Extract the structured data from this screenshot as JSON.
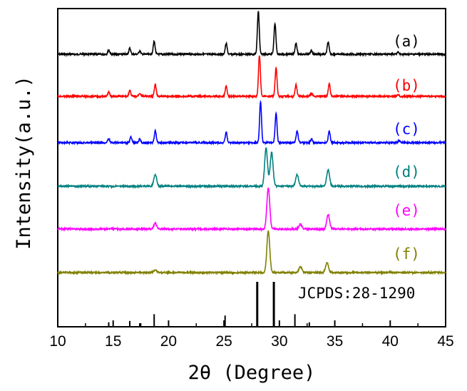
{
  "chart_data": {
    "type": "line",
    "xlabel": "2θ (Degree)",
    "ylabel": "Intensity(a.u.)",
    "xlim": [
      10,
      45
    ],
    "xticks": [
      10,
      15,
      20,
      25,
      30,
      35,
      40,
      45
    ],
    "grid": false,
    "series": [
      {
        "name": "(a)",
        "color": "#000000",
        "shape": "sharp",
        "peaks": [
          [
            14.6,
            0.1
          ],
          [
            16.5,
            0.14
          ],
          [
            17.4,
            0.08
          ],
          [
            18.7,
            0.3
          ],
          [
            25.2,
            0.25
          ],
          [
            28.1,
            1.0
          ],
          [
            29.6,
            0.72
          ],
          [
            31.5,
            0.26
          ],
          [
            32.9,
            0.08
          ],
          [
            34.4,
            0.28
          ],
          [
            40.7,
            0.05
          ]
        ]
      },
      {
        "name": "(b)",
        "color": "#ff0000",
        "shape": "sharp",
        "peaks": [
          [
            14.6,
            0.1
          ],
          [
            16.5,
            0.14
          ],
          [
            17.4,
            0.08
          ],
          [
            18.8,
            0.28
          ],
          [
            25.2,
            0.25
          ],
          [
            28.2,
            1.0
          ],
          [
            29.7,
            0.7
          ],
          [
            31.5,
            0.28
          ],
          [
            32.9,
            0.08
          ],
          [
            34.5,
            0.3
          ],
          [
            40.7,
            0.05
          ]
        ]
      },
      {
        "name": "(c)",
        "color": "#0000ff",
        "shape": "sharp",
        "peaks": [
          [
            14.6,
            0.1
          ],
          [
            16.6,
            0.14
          ],
          [
            17.4,
            0.08
          ],
          [
            18.8,
            0.3
          ],
          [
            25.2,
            0.25
          ],
          [
            28.3,
            1.0
          ],
          [
            29.7,
            0.72
          ],
          [
            31.6,
            0.28
          ],
          [
            32.9,
            0.08
          ],
          [
            34.5,
            0.28
          ],
          [
            40.8,
            0.05
          ]
        ]
      },
      {
        "name": "(d)",
        "color": "#008080",
        "shape": "broad",
        "peaks": [
          [
            18.8,
            0.28
          ],
          [
            28.8,
            0.92
          ],
          [
            29.3,
            0.82
          ],
          [
            31.6,
            0.28
          ],
          [
            34.4,
            0.4
          ]
        ]
      },
      {
        "name": "(e)",
        "color": "#ff00ff",
        "shape": "broad",
        "peaks": [
          [
            18.8,
            0.14
          ],
          [
            29.0,
            1.0
          ],
          [
            31.9,
            0.12
          ],
          [
            34.4,
            0.35
          ]
        ]
      },
      {
        "name": "(f)",
        "color": "#808000",
        "shape": "broad",
        "peaks": [
          [
            18.8,
            0.06
          ],
          [
            29.0,
            1.0
          ],
          [
            31.9,
            0.14
          ],
          [
            34.3,
            0.24
          ]
        ]
      }
    ],
    "reference": {
      "label": "JCPDS:28-1290",
      "lines": [
        [
          14.6,
          0.1
        ],
        [
          16.5,
          0.13
        ],
        [
          17.4,
          0.08
        ],
        [
          18.7,
          0.28
        ],
        [
          25.1,
          0.25
        ],
        [
          28.0,
          1.0
        ],
        [
          29.5,
          1.0
        ],
        [
          31.4,
          0.28
        ],
        [
          32.7,
          0.1
        ]
      ]
    }
  }
}
